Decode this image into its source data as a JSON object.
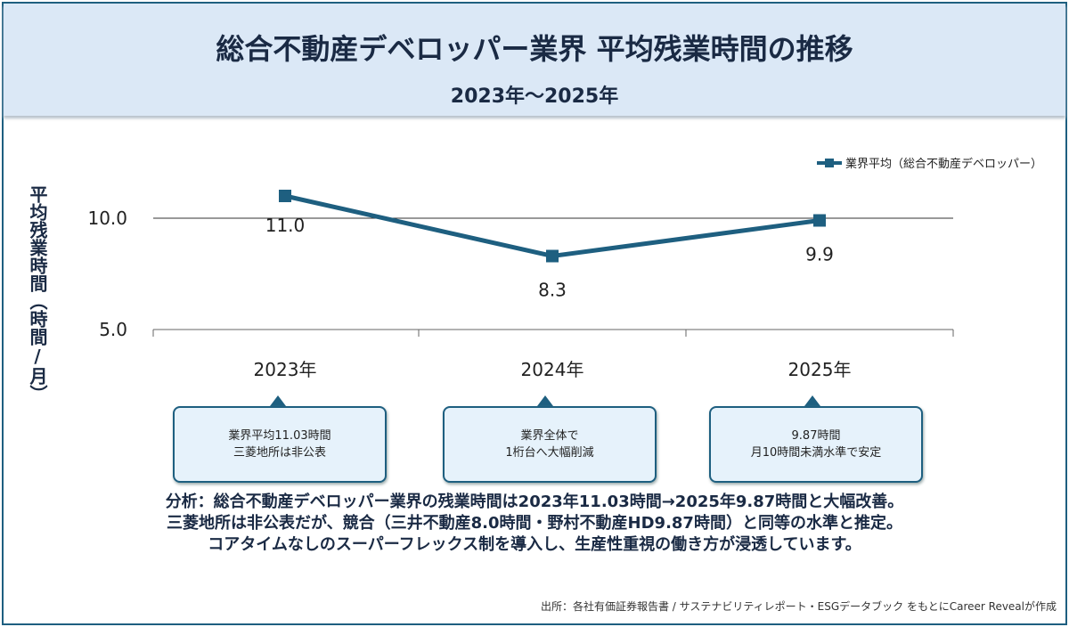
{
  "header": {
    "title": "総合不動産デベロッパー業界 平均残業時間の推移",
    "subtitle": "2023年〜2025年"
  },
  "chart_data": {
    "type": "line",
    "categories": [
      "2023年",
      "2024年",
      "2025年"
    ],
    "series": [
      {
        "name": "業界平均（総合不動産デベロッパー）",
        "values": [
          11.0,
          8.3,
          9.9
        ],
        "labels": [
          "11.0",
          "8.3",
          "9.9"
        ],
        "color": "#1e5f80"
      }
    ],
    "ylabel": "平均残業時間（時間/月）",
    "yticks": [
      "5.0",
      "10.0"
    ],
    "ylim": [
      5.0,
      12.0
    ],
    "legend": "top-right",
    "grid": false
  },
  "notes": [
    {
      "lines": [
        "業界平均11.03時間",
        "三菱地所は非公表"
      ]
    },
    {
      "lines": [
        "業界全体で",
        "1桁台へ大幅削減"
      ]
    },
    {
      "lines": [
        "9.87時間",
        "月10時間未満水準で安定"
      ]
    }
  ],
  "analysis": [
    "分析：総合不動産デベロッパー業界の残業時間は2023年11.03時間→2025年9.87時間と大幅改善。",
    "三菱地所は非公表だが、競合（三井不動産8.0時間・野村不動産HD9.87時間）と同等の水準と推定。",
    "コアタイムなしのスーパーフレックス制を導入し、生産性重視の働き方が浸透しています。"
  ],
  "source": "出所：各社有価証券報告書 / サステナビリティレポート・ESGデータブック をもとにCareer Revealが作成"
}
